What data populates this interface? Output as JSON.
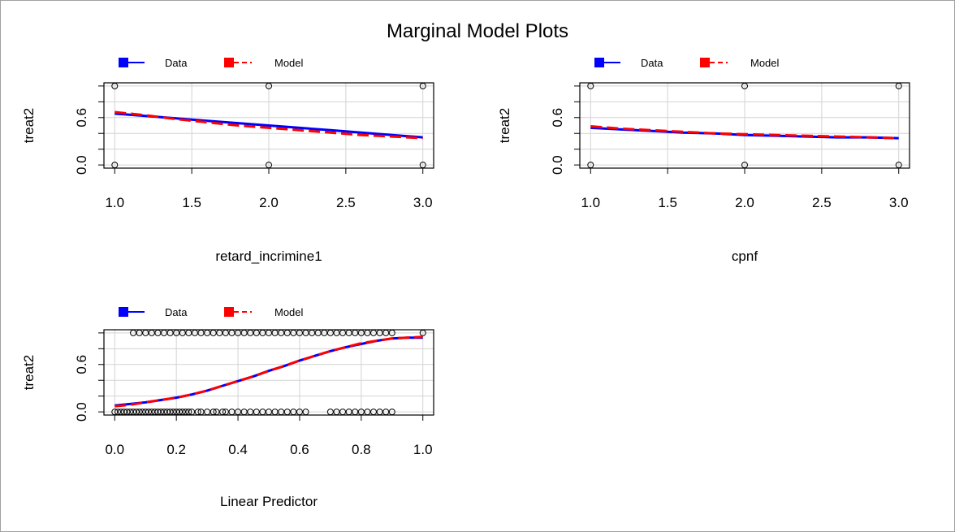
{
  "title": "Marginal Model Plots",
  "legend": {
    "data_label": "Data",
    "model_label": "Model"
  },
  "colors": {
    "data": "#0000ff",
    "model": "#ff0000",
    "grid": "#d3d3d3",
    "points": "#000000"
  },
  "chart_data": [
    {
      "type": "line",
      "xlabel": "retard_incrimine1",
      "ylabel": "treat2",
      "xlim": [
        1.0,
        3.0
      ],
      "ylim": [
        0.0,
        1.0
      ],
      "x_ticks": [
        "1.0",
        "1.5",
        "2.0",
        "2.5",
        "3.0"
      ],
      "y_ticks": [
        "0.0",
        "0.6"
      ],
      "grid": true,
      "legend_position": "top-left",
      "series": [
        {
          "name": "Data",
          "style": "solid",
          "color": "#0000ff",
          "x": [
            1.0,
            1.2,
            1.4,
            1.6,
            1.8,
            2.0,
            2.2,
            2.4,
            2.6,
            2.8,
            3.0
          ],
          "y": [
            0.65,
            0.62,
            0.59,
            0.56,
            0.53,
            0.5,
            0.47,
            0.44,
            0.41,
            0.38,
            0.35
          ]
        },
        {
          "name": "Model",
          "style": "dashed",
          "color": "#ff0000",
          "x": [
            1.0,
            1.2,
            1.4,
            1.6,
            1.8,
            2.0,
            2.2,
            2.4,
            2.6,
            2.8,
            3.0
          ],
          "y": [
            0.67,
            0.63,
            0.58,
            0.54,
            0.5,
            0.47,
            0.44,
            0.41,
            0.38,
            0.36,
            0.34
          ]
        }
      ],
      "points": {
        "x": [
          1.0,
          2.0,
          3.0,
          1.0,
          2.0,
          3.0
        ],
        "y": [
          1.0,
          1.0,
          1.0,
          0.0,
          0.0,
          0.0
        ]
      }
    },
    {
      "type": "line",
      "xlabel": "cpnf",
      "ylabel": "treat2",
      "xlim": [
        1.0,
        3.0
      ],
      "ylim": [
        0.0,
        1.0
      ],
      "x_ticks": [
        "1.0",
        "1.5",
        "2.0",
        "2.5",
        "3.0"
      ],
      "y_ticks": [
        "0.0",
        "0.6"
      ],
      "grid": true,
      "legend_position": "top-left",
      "series": [
        {
          "name": "Data",
          "style": "solid",
          "color": "#0000ff",
          "x": [
            1.0,
            1.2,
            1.4,
            1.6,
            1.8,
            2.0,
            2.2,
            2.4,
            2.6,
            2.8,
            3.0
          ],
          "y": [
            0.47,
            0.45,
            0.43,
            0.41,
            0.4,
            0.38,
            0.37,
            0.36,
            0.35,
            0.35,
            0.34
          ]
        },
        {
          "name": "Model",
          "style": "dashed",
          "color": "#ff0000",
          "x": [
            1.0,
            1.2,
            1.4,
            1.6,
            1.8,
            2.0,
            2.2,
            2.4,
            2.6,
            2.8,
            3.0
          ],
          "y": [
            0.49,
            0.46,
            0.44,
            0.42,
            0.4,
            0.39,
            0.38,
            0.37,
            0.36,
            0.35,
            0.34
          ]
        }
      ],
      "points": {
        "x": [
          1.0,
          2.0,
          3.0,
          1.0,
          2.0,
          3.0
        ],
        "y": [
          1.0,
          1.0,
          1.0,
          0.0,
          0.0,
          0.0
        ]
      }
    },
    {
      "type": "line",
      "xlabel": "Linear Predictor",
      "ylabel": "treat2",
      "xlim": [
        0.0,
        1.0
      ],
      "ylim": [
        0.0,
        1.0
      ],
      "x_ticks": [
        "0.0",
        "0.2",
        "0.4",
        "0.6",
        "0.8",
        "1.0"
      ],
      "y_ticks": [
        "0.0",
        "0.6"
      ],
      "grid": true,
      "legend_position": "top-left",
      "series": [
        {
          "name": "Data",
          "style": "solid",
          "color": "#0000ff",
          "x": [
            0.0,
            0.05,
            0.1,
            0.15,
            0.2,
            0.25,
            0.3,
            0.35,
            0.4,
            0.45,
            0.5,
            0.55,
            0.6,
            0.65,
            0.7,
            0.75,
            0.8,
            0.85,
            0.9,
            0.95,
            1.0
          ],
          "y": [
            0.08,
            0.1,
            0.12,
            0.15,
            0.18,
            0.22,
            0.27,
            0.33,
            0.39,
            0.45,
            0.52,
            0.58,
            0.65,
            0.71,
            0.77,
            0.82,
            0.86,
            0.9,
            0.93,
            0.94,
            0.94
          ]
        },
        {
          "name": "Model",
          "style": "dashed",
          "color": "#ff0000",
          "x": [
            0.0,
            0.05,
            0.1,
            0.15,
            0.2,
            0.25,
            0.3,
            0.35,
            0.4,
            0.45,
            0.5,
            0.55,
            0.6,
            0.65,
            0.7,
            0.75,
            0.8,
            0.85,
            0.9,
            0.95,
            1.0
          ],
          "y": [
            0.07,
            0.09,
            0.12,
            0.15,
            0.18,
            0.22,
            0.27,
            0.33,
            0.39,
            0.45,
            0.52,
            0.58,
            0.65,
            0.71,
            0.77,
            0.82,
            0.87,
            0.9,
            0.93,
            0.94,
            0.95
          ]
        }
      ],
      "points": {
        "x": [
          0.0,
          0.01,
          0.02,
          0.03,
          0.04,
          0.05,
          0.06,
          0.07,
          0.08,
          0.09,
          0.1,
          0.11,
          0.12,
          0.13,
          0.14,
          0.15,
          0.16,
          0.17,
          0.18,
          0.19,
          0.2,
          0.21,
          0.22,
          0.23,
          0.24,
          0.25,
          0.27,
          0.28,
          0.3,
          0.32,
          0.33,
          0.35,
          0.36,
          0.38,
          0.4,
          0.42,
          0.44,
          0.46,
          0.48,
          0.5,
          0.52,
          0.54,
          0.56,
          0.58,
          0.6,
          0.62,
          0.7,
          0.72,
          0.74,
          0.76,
          0.78,
          0.8,
          0.82,
          0.84,
          0.86,
          0.88,
          0.9,
          0.06,
          0.08,
          0.1,
          0.12,
          0.14,
          0.16,
          0.18,
          0.2,
          0.22,
          0.24,
          0.26,
          0.28,
          0.3,
          0.32,
          0.34,
          0.36,
          0.38,
          0.4,
          0.42,
          0.44,
          0.46,
          0.48,
          0.5,
          0.52,
          0.54,
          0.56,
          0.58,
          0.6,
          0.62,
          0.64,
          0.66,
          0.68,
          0.7,
          0.72,
          0.74,
          0.76,
          0.78,
          0.8,
          0.82,
          0.84,
          0.86,
          0.88,
          0.9,
          1.0
        ],
        "y": [
          0,
          0,
          0,
          0,
          0,
          0,
          0,
          0,
          0,
          0,
          0,
          0,
          0,
          0,
          0,
          0,
          0,
          0,
          0,
          0,
          0,
          0,
          0,
          0,
          0,
          0,
          0,
          0,
          0,
          0,
          0,
          0,
          0,
          0,
          0,
          0,
          0,
          0,
          0,
          0,
          0,
          0,
          0,
          0,
          0,
          0,
          0,
          0,
          0,
          0,
          0,
          0,
          0,
          0,
          0,
          0,
          0,
          1,
          1,
          1,
          1,
          1,
          1,
          1,
          1,
          1,
          1,
          1,
          1,
          1,
          1,
          1,
          1,
          1,
          1,
          1,
          1,
          1,
          1,
          1,
          1,
          1,
          1,
          1,
          1,
          1,
          1,
          1,
          1,
          1,
          1,
          1,
          1,
          1,
          1,
          1,
          1,
          1,
          1,
          1,
          1
        ]
      }
    }
  ]
}
